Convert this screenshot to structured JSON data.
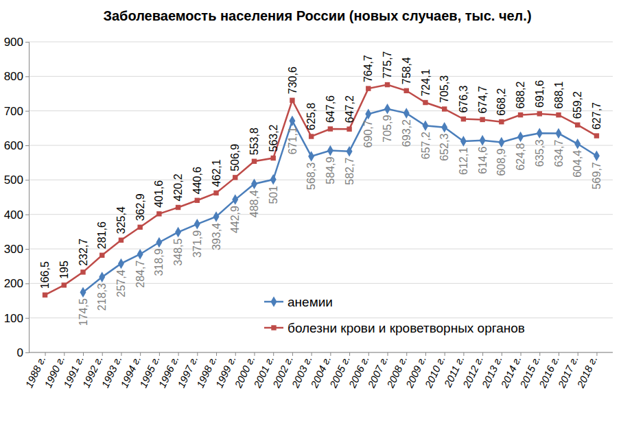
{
  "chart_data": {
    "type": "line",
    "title": "Заболеваемость населения России (новых случаев, тыс. чел.)",
    "categories": [
      "1988 г.",
      "1990 г.",
      "1991 г.",
      "1992 г.",
      "1993 г.",
      "1994 г.",
      "1995 г.",
      "1996 г.",
      "1997 г.",
      "1998 г.",
      "1999 г.",
      "2000 г.",
      "2001 г.",
      "2002 г.",
      "2003 г.",
      "2004 г.",
      "2005 г.",
      "2006 г.",
      "2007 г.",
      "2008 г.",
      "2009 г.",
      "2010 г.",
      "2011 г.",
      "2012 г.",
      "2013 г.",
      "2014 г.",
      "2015 г.",
      "2016 г.",
      "2017 г.",
      "2018 г."
    ],
    "series": [
      {
        "name": "анемии",
        "color": "#4a7ebb",
        "marker": "diamond",
        "values": [
          null,
          null,
          174.5,
          218.3,
          257.4,
          284.7,
          318.9,
          348.5,
          371.9,
          393.4,
          442.9,
          488.4,
          501,
          671.1,
          568.3,
          584.9,
          582.7,
          690.7,
          705.9,
          693.2,
          657.2,
          652.3,
          612.1,
          614.6,
          608.9,
          624.8,
          635.3,
          634.7,
          604.4,
          569.7
        ],
        "value_labels": [
          null,
          null,
          "174,5",
          "218,3",
          "257,4",
          "284,7",
          "318,9",
          "348,5",
          "371,9",
          "393,4",
          "442,9",
          "488,4",
          "501",
          "671,1",
          "568,3",
          "584,9",
          "582,7",
          "690,7",
          "705,9",
          "693,2",
          "657,2",
          "652,3",
          "612,1",
          "614,6",
          "608,9",
          "624,8",
          "635,3",
          "634,7",
          "604,4",
          "569,7"
        ]
      },
      {
        "name": "болезни крови и кроветворных органов",
        "color": "#be4b48",
        "marker": "square",
        "values": [
          166.5,
          195,
          232.7,
          281.6,
          325.4,
          362.9,
          401.6,
          420.2,
          440.6,
          462.1,
          506.9,
          553.8,
          563.2,
          730.6,
          625.8,
          647.6,
          647.2,
          764.7,
          775.7,
          758.4,
          724.1,
          705.3,
          676.3,
          674.7,
          668.2,
          688.2,
          691.6,
          688.1,
          659.2,
          627.7
        ],
        "value_labels": [
          "166,5",
          "195",
          "232,7",
          "281,6",
          "325,4",
          "362,9",
          "401,6",
          "420,2",
          "440,6",
          "462,1",
          "506,9",
          "553,8",
          "563,2",
          "730,6",
          "625,8",
          "647,6",
          "647,2",
          "764,7",
          "775,7",
          "758,4",
          "724,1",
          "705,3",
          "676,3",
          "674,7",
          "668,2",
          "688,2",
          "691,6",
          "688,1",
          "659,2",
          "627,7"
        ]
      }
    ],
    "ylim": [
      0,
      900
    ],
    "yticks": [
      0,
      100,
      200,
      300,
      400,
      500,
      600,
      700,
      800,
      900
    ],
    "grid": true,
    "legend": "bottom",
    "data_labels": true
  }
}
